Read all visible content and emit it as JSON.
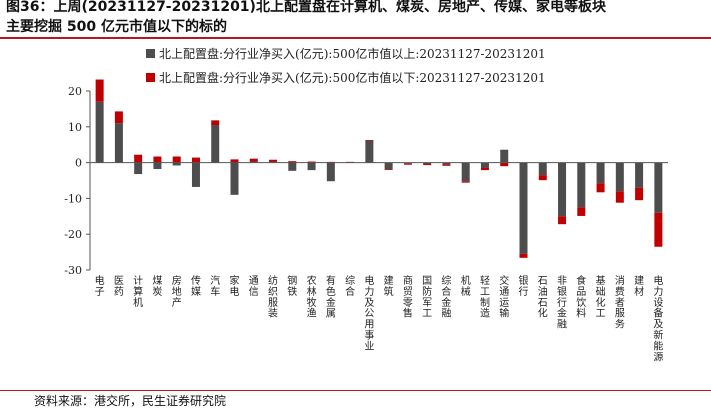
{
  "header": {
    "title_line1": "图36：上周(20231127-20231201)北上配置盘在计算机、煤炭、房地产、传媒、家电等板块",
    "title_line2": "主要挖掘 500 亿元市值以下的标的"
  },
  "footer": {
    "source": "资料来源：港交所，民生证券研究院"
  },
  "chart_data": {
    "type": "bar",
    "ylim": [
      -30,
      20
    ],
    "yticks": [
      20,
      10,
      0,
      -10,
      -20,
      -30
    ],
    "legend_position": "top-left",
    "grid": false,
    "categories": [
      "电子",
      "医药",
      "计算机",
      "煤炭",
      "房地产",
      "传媒",
      "汽车",
      "家电",
      "通信",
      "纺织服装",
      "钢铁",
      "农林牧渔",
      "有色金属",
      "综合",
      "电力及公用事业",
      "建筑",
      "商贸零售",
      "国防军工",
      "综合金融",
      "机械",
      "轻工制造",
      "交通运输",
      "银行",
      "石油石化",
      "非银行金融",
      "食品饮料",
      "基础化工",
      "消费者服务",
      "建材",
      "电力设备及新能源"
    ],
    "series": [
      {
        "name": "北上配置盘:分行业净买入(亿元):500亿市值以上:20231127-20231201",
        "color": "#4d4d4d",
        "values": [
          17,
          11,
          -3.2,
          -1.8,
          -0.8,
          -6.8,
          10.5,
          -9,
          0.3,
          0.3,
          -2.3,
          -2.1,
          -5.2,
          0.1,
          6.2,
          -1.9,
          -0.3,
          -0.4,
          -0.5,
          -5.2,
          -1.5,
          3.6,
          -25.5,
          -3.5,
          -15,
          -12.5,
          -5.8,
          -8,
          -7,
          -14
        ]
      },
      {
        "name": "北上配置盘:分行业净买入(亿元):500亿市值以下:20231127-20231201",
        "color": "#c00000",
        "values": [
          6.2,
          3.3,
          2.2,
          1.7,
          1.7,
          1.4,
          1.3,
          0.9,
          0.8,
          0.5,
          0.4,
          0.3,
          0.2,
          0.1,
          0.1,
          -0.1,
          -0.3,
          -0.3,
          -0.4,
          -0.4,
          -0.6,
          -1,
          -1.1,
          -1.4,
          -2.2,
          -2.4,
          -2.5,
          -3.2,
          -3.5,
          -9.5
        ]
      }
    ]
  }
}
